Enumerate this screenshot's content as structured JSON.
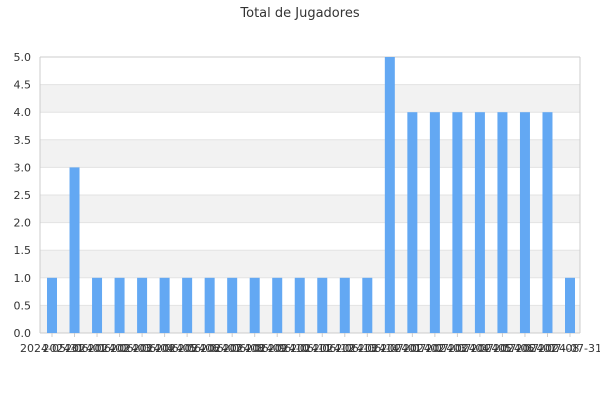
{
  "chart_data": {
    "type": "bar",
    "title": "Total de Jugadores",
    "xlabel": "",
    "ylabel": "",
    "ylim": [
      0,
      5
    ],
    "yticks": [
      "0.0",
      "0.5",
      "1.0",
      "1.5",
      "2.0",
      "2.5",
      "3.0",
      "3.5",
      "4.0",
      "4.5",
      "5.0"
    ],
    "grid": true,
    "categories": [
      "2024-05-31",
      "2024-06-01",
      "2024-06-02",
      "2024-06-03",
      "2024-06-04",
      "2024-06-05",
      "2024-06-06",
      "2024-06-07",
      "2024-06-08",
      "2024-06-09",
      "2024-06-10",
      "2024-06-11",
      "2024-06-12",
      "2024-06-13",
      "2024-06-14",
      "2024-07-01",
      "2024-07-02",
      "2024-07-03",
      "2024-07-04",
      "2024-07-05",
      "2024-07-06",
      "2024-07-07",
      "2024-07-08",
      "2024-07-31"
    ],
    "values": [
      1,
      3,
      1,
      1,
      1,
      1,
      1,
      1,
      1,
      1,
      1,
      1,
      1,
      1,
      1,
      5,
      4,
      4,
      4,
      4,
      4,
      4,
      4,
      1
    ],
    "colors": {
      "bar": "#63a8f3",
      "band": "#f2f2f2",
      "grid": "#e3e3e3",
      "axis": "#cccccc",
      "text": "#333333"
    }
  }
}
